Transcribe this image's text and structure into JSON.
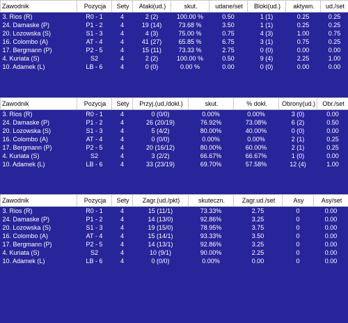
{
  "tables": [
    {
      "name": "attack-table",
      "headers": [
        "Zawodnik",
        "Pozycja",
        "Sety",
        "Ataki(ud.)",
        "skut.",
        "udane/set",
        "Bloki(ud.)",
        "aktywn.",
        "ud./set"
      ],
      "rows": [
        [
          "3. Rios (R)",
          "R0 - 1",
          "4",
          "2 (2)",
          "100.00 %",
          "0.50",
          "1 (1)",
          "0.25",
          "0.25"
        ],
        [
          "24. Damaske (P)",
          "P1 - 2",
          "4",
          "19 (14)",
          "73.68 %",
          "3.50",
          "1 (1)",
          "0.25",
          "0.25"
        ],
        [
          "20. Lozowska (S)",
          "S1 - 3",
          "4",
          "4 (3)",
          "75.00 %",
          "0.75",
          "4 (3)",
          "1.00",
          "0.75"
        ],
        [
          "16. Colombo (A)",
          "AT - 4",
          "4",
          "41 (27)",
          "65.85 %",
          "6.75",
          "3 (1)",
          "0.75",
          "0.25"
        ],
        [
          "17. Bergmann (P)",
          "P2 - 5",
          "4",
          "15 (11)",
          "73.33 %",
          "2.75",
          "0 (0)",
          "0.00",
          "0.00"
        ],
        [
          "4. Kuriata (S)",
          "S2",
          "4",
          "2 (2)",
          "100.00 %",
          "0.50",
          "9 (4)",
          "2.25",
          "1.00"
        ],
        [
          "10. Adamek (L)",
          "LB - 6",
          "4",
          "0 (0)",
          "0.00 %",
          "0.00",
          "0 (0)",
          "0.00",
          "0.00"
        ]
      ]
    },
    {
      "name": "reception-table",
      "headers": [
        "Zawodnik",
        "Pozycja",
        "Sety",
        "Przyj.(ud./dokł.)",
        "skut.",
        "% dokł.",
        "Obrony(ud.)",
        "Obr./set"
      ],
      "rows": [
        [
          "3. Rios (R)",
          "R0 - 1",
          "4",
          "0 (0/0)",
          "0.00%",
          "0.00%",
          "3 (0)",
          "0.00"
        ],
        [
          "24. Damaske (P)",
          "P1 - 2",
          "4",
          "26 (20/19)",
          "76.92%",
          "73.08%",
          "6 (2)",
          "0.50"
        ],
        [
          "20. Lozowska (S)",
          "S1 - 3",
          "4",
          "5 (4/2)",
          "80.00%",
          "40.00%",
          "0 (0)",
          "0.00"
        ],
        [
          "16. Colombo (A)",
          "AT - 4",
          "4",
          "0 (0/0)",
          "0.00%",
          "0.00%",
          "2 (1)",
          "0.25"
        ],
        [
          "17. Bergmann (P)",
          "P2 - 5",
          "4",
          "20 (16/12)",
          "80.00%",
          "60.00%",
          "2 (1)",
          "0.25"
        ],
        [
          "4. Kuriata (S)",
          "S2",
          "4",
          "3 (2/2)",
          "66.67%",
          "66.67%",
          "1 (0)",
          "0.00"
        ],
        [
          "10. Adamek (L)",
          "LB - 6",
          "4",
          "33 (23/19)",
          "69.70%",
          "57.58%",
          "12 (4)",
          "1.00"
        ]
      ]
    },
    {
      "name": "serve-table",
      "headers": [
        "Zawodnik",
        "Pozycja",
        "Sety",
        "Zagr.(ud./pkt)",
        "skuteczn.",
        "Zagr.ud./set",
        "Asy",
        "Asy/set"
      ],
      "rows": [
        [
          "3. Rios (R)",
          "R0 - 1",
          "4",
          "15 (11/1)",
          "73.33%",
          "2.75",
          "0",
          "0.00"
        ],
        [
          "24. Damaske (P)",
          "P1 - 2",
          "4",
          "14 (13/0)",
          "92.86%",
          "3.25",
          "0",
          "0.00"
        ],
        [
          "20. Lozowska (S)",
          "S1 - 3",
          "4",
          "19 (15/0)",
          "78.95%",
          "3.75",
          "0",
          "0.00"
        ],
        [
          "16. Colombo (A)",
          "AT - 4",
          "4",
          "15 (14/1)",
          "93.33%",
          "3.50",
          "0",
          "0.00"
        ],
        [
          "17. Bergmann (P)",
          "P2 - 5",
          "4",
          "14 (13/1)",
          "92.86%",
          "3.25",
          "0",
          "0.00"
        ],
        [
          "4. Kuriata (S)",
          "S2",
          "4",
          "10 (9/1)",
          "90.00%",
          "2.25",
          "0",
          "0.00"
        ],
        [
          "10. Adamek (L)",
          "LB - 6",
          "4",
          "0 (0/0)",
          "0.00%",
          "0.00",
          "0",
          "0.00"
        ]
      ]
    }
  ]
}
